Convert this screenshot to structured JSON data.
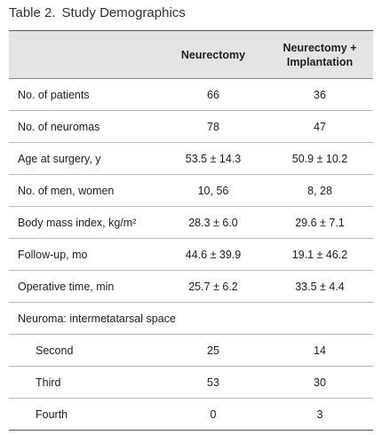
{
  "title": {
    "label": "Table 2.",
    "text": "Study Demographics"
  },
  "table": {
    "header": [
      "",
      "Neurectomy",
      "Neurectomy + Implantation"
    ],
    "rows": [
      [
        "No. of patients",
        "66",
        "36"
      ],
      [
        "No. of neuromas",
        "78",
        "47"
      ],
      [
        "Age at surgery, y",
        "53.5 ± 14.3",
        "50.9 ± 10.2"
      ],
      [
        "No. of men, women",
        "10, 56",
        "8, 28"
      ],
      [
        "Body mass index, kg/m²",
        "28.3 ± 6.0",
        "29.6 ± 7.1"
      ],
      [
        "Follow-up, mo",
        "44.6 ± 39.9",
        "19.1 ± 46.2"
      ],
      [
        "Operative time, min",
        "25.7 ± 6.2",
        "33.5 ± 4.4"
      ],
      [
        "Neuroma: intermetatarsal space"
      ],
      [
        "Second",
        "25",
        "14"
      ],
      [
        "Third",
        "53",
        "30"
      ],
      [
        "Fourth",
        "0",
        "3"
      ]
    ],
    "indented_rows": [
      8,
      9,
      10
    ]
  }
}
